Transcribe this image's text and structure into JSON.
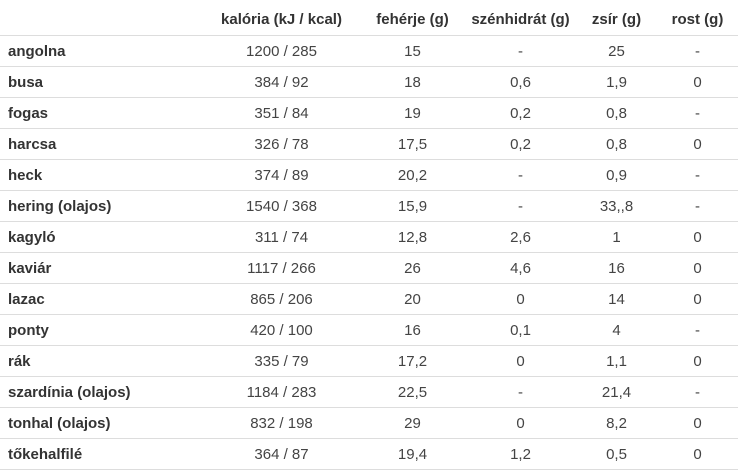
{
  "table": {
    "headers": {
      "name": "",
      "kaloria": "kalória (kJ / kcal)",
      "feherje": "fehérje (g)",
      "szenhidrat": "szénhidrát (g)",
      "zsir": "zsír (g)",
      "rost": "rost (g)"
    },
    "rows": [
      {
        "name": "angolna",
        "kaloria": "1200 / 285",
        "feherje": "15",
        "szenhidrat": "-",
        "zsir": "25",
        "rost": "-"
      },
      {
        "name": "busa",
        "kaloria": "384 / 92",
        "feherje": "18",
        "szenhidrat": "0,6",
        "zsir": "1,9",
        "rost": "0"
      },
      {
        "name": "fogas",
        "kaloria": "351 / 84",
        "feherje": "19",
        "szenhidrat": "0,2",
        "zsir": "0,8",
        "rost": "-"
      },
      {
        "name": "harcsa",
        "kaloria": "326 / 78",
        "feherje": "17,5",
        "szenhidrat": "0,2",
        "zsir": "0,8",
        "rost": "0"
      },
      {
        "name": "heck",
        "kaloria": "374 / 89",
        "feherje": "20,2",
        "szenhidrat": "-",
        "zsir": "0,9",
        "rost": "-"
      },
      {
        "name": "hering (olajos)",
        "kaloria": "1540 / 368",
        "feherje": "15,9",
        "szenhidrat": "-",
        "zsir": "33,,8",
        "rost": "-"
      },
      {
        "name": "kagyló",
        "kaloria": "311 / 74",
        "feherje": "12,8",
        "szenhidrat": "2,6",
        "zsir": "1",
        "rost": "0"
      },
      {
        "name": "kaviár",
        "kaloria": "1117 / 266",
        "feherje": "26",
        "szenhidrat": "4,6",
        "zsir": "16",
        "rost": "0"
      },
      {
        "name": "lazac",
        "kaloria": "865 / 206",
        "feherje": "20",
        "szenhidrat": "0",
        "zsir": "14",
        "rost": "0"
      },
      {
        "name": "ponty",
        "kaloria": "420 / 100",
        "feherje": "16",
        "szenhidrat": "0,1",
        "zsir": "4",
        "rost": "-"
      },
      {
        "name": "rák",
        "kaloria": "335 / 79",
        "feherje": "17,2",
        "szenhidrat": "0",
        "zsir": "1,1",
        "rost": "0"
      },
      {
        "name": "szardínia (olajos)",
        "kaloria": "1184 / 283",
        "feherje": "22,5",
        "szenhidrat": "-",
        "zsir": "21,4",
        "rost": "-"
      },
      {
        "name": "tonhal (olajos)",
        "kaloria": "832 / 198",
        "feherje": "29",
        "szenhidrat": "0",
        "zsir": "8,2",
        "rost": "0"
      },
      {
        "name": "tőkehalfilé",
        "kaloria": "364 / 87",
        "feherje": "19,4",
        "szenhidrat": "1,2",
        "zsir": "0,5",
        "rost": "0"
      }
    ]
  },
  "colors": {
    "text": "#444444",
    "row_border": "#dddddd",
    "background": "#ffffff"
  }
}
